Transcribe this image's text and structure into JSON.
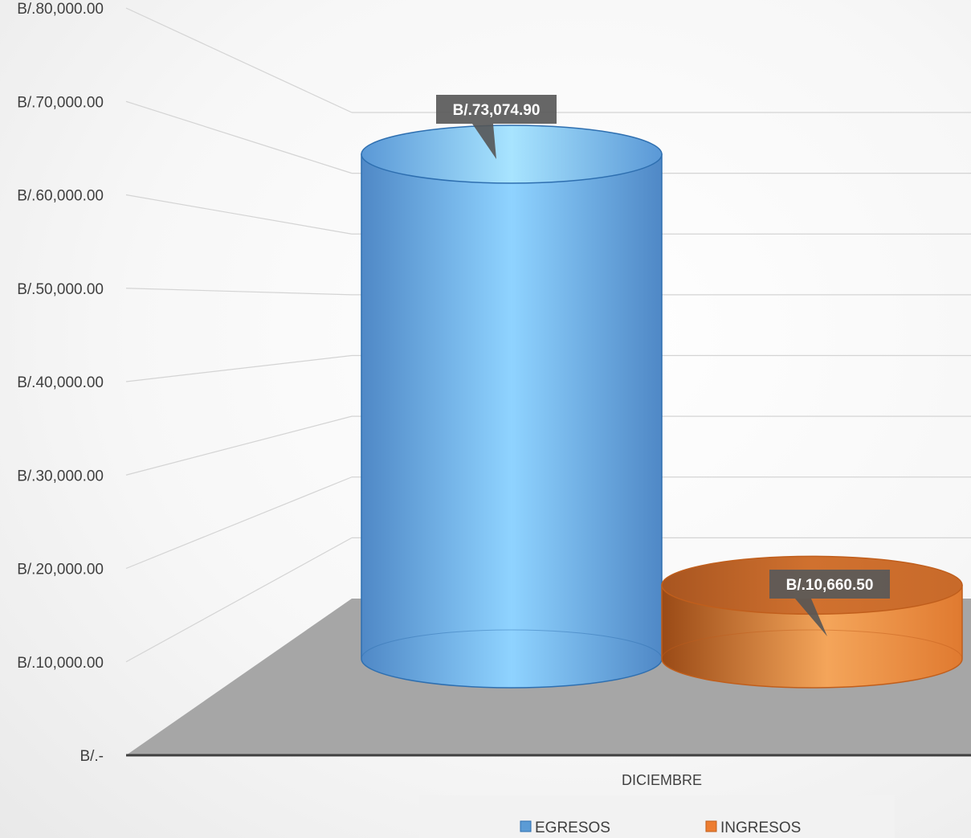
{
  "chart_data": {
    "type": "bar",
    "style": "3d-cylinder",
    "categories": [
      "DICIEMBRE"
    ],
    "series": [
      {
        "name": "EGRESOS",
        "values": [
          73074.9
        ],
        "label": "B/.73,074.90",
        "color": "#5b9bd5"
      },
      {
        "name": "INGRESOS",
        "values": [
          10660.5
        ],
        "label": "B/.10,660.50",
        "color": "#ed7d31"
      }
    ],
    "ylim": [
      0,
      80000
    ],
    "yticks": [
      0,
      10000,
      20000,
      30000,
      40000,
      50000,
      60000,
      70000,
      80000
    ],
    "ytick_labels": [
      "B/.-",
      "B/.10,000.00",
      "B/.20,000.00",
      "B/.30,000.00",
      "B/.40,000.00",
      "B/.50,000.00",
      "B/.60,000.00",
      "B/.70,000.00",
      "B/.80,000.00"
    ],
    "grid": true,
    "legend_position": "bottom",
    "floor_color": "#a6a6a6"
  }
}
